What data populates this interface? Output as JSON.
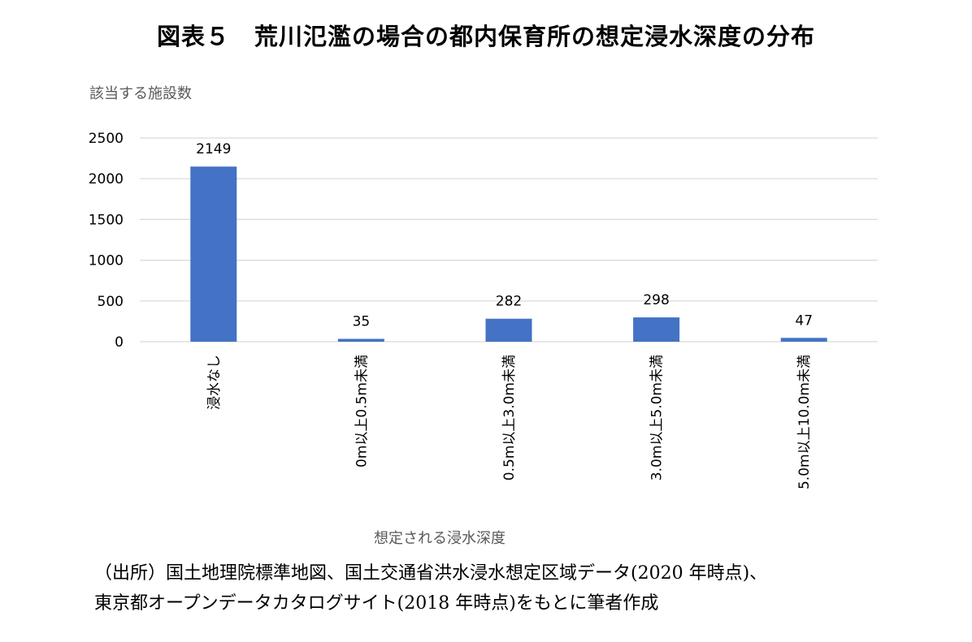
{
  "title": "図表５　荒川氾濫の場合の都内保育所の想定浸水深度の分布",
  "source": {
    "line1": "（出所）国土地理院標準地図、国土交通省洪水浸水想定区域データ(2020 年時点)、",
    "line2": "東京都オープンデータカタログサイト(2018 年時点)をもとに筆者作成"
  },
  "colors": {
    "bar": "#4472C4",
    "grid": "#D9D9D9"
  },
  "chart_data": {
    "type": "bar",
    "ylabel": "該当する施設数",
    "xlabel": "想定される浸水深度",
    "categories": [
      "浸水なし",
      "0m以上0.5m未満",
      "0.5m以上3.0m未満",
      "3.0m以上5.0m未満",
      "5.0m以上10.0m未満"
    ],
    "values": [
      2149,
      35,
      282,
      298,
      47
    ],
    "data_labels": [
      "2149",
      "35",
      "282",
      "298",
      "47"
    ],
    "ylim": [
      0,
      2500
    ],
    "yticks": [
      0,
      500,
      1000,
      1500,
      2000,
      2500
    ],
    "grid": true,
    "legend": "none"
  }
}
